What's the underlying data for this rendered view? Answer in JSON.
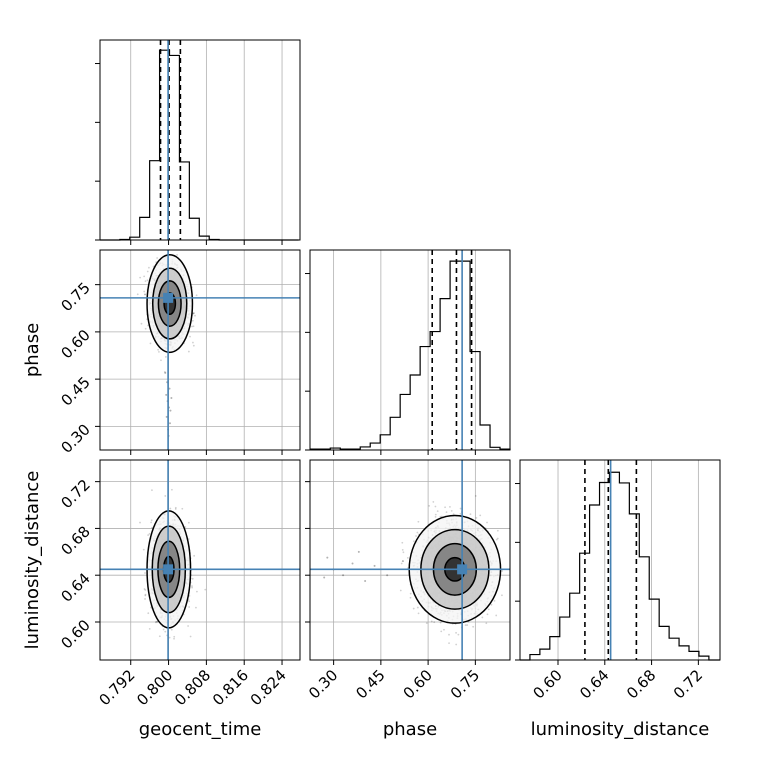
{
  "chart_data": {
    "type": "corner",
    "parameters": [
      "geocent_time",
      "phase",
      "luminosity_distance"
    ],
    "axis_labels": {
      "x": [
        "geocent_time",
        "phase",
        "luminosity_distance"
      ],
      "y": [
        "",
        "phase",
        "luminosity_distance"
      ]
    },
    "ranges": {
      "geocent_time": [
        0.7855,
        0.8278
      ],
      "phase": [
        0.225,
        0.86
      ],
      "luminosity_distance": [
        0.5675,
        0.7385
      ]
    },
    "ticks": {
      "geocent_time": {
        "values": [
          0.792,
          0.8,
          0.808,
          0.816,
          0.824
        ],
        "labels": [
          "0.792",
          "0.800",
          "0.808",
          "0.816",
          "0.824"
        ]
      },
      "phase": {
        "values": [
          0.3,
          0.45,
          0.6,
          0.75
        ],
        "labels": [
          "0.30",
          "0.45",
          "0.60",
          "0.75"
        ]
      },
      "luminosity_distance": {
        "values": [
          0.6,
          0.64,
          0.68,
          0.72
        ],
        "labels": [
          "0.60",
          "0.64",
          "0.68",
          "0.72"
        ]
      }
    },
    "truths": {
      "geocent_time": 0.7999,
      "phase": 0.708,
      "luminosity_distance": 0.645
    },
    "truth_color": "#4682b4",
    "quantiles": {
      "geocent_time": [
        0.7983,
        0.8001,
        0.8025
      ],
      "phase": [
        0.613,
        0.69,
        0.738
      ],
      "luminosity_distance": [
        0.623,
        0.643,
        0.667
      ]
    },
    "histograms": {
      "geocent_time": {
        "edges": [
          0.7855,
          0.7876,
          0.7897,
          0.7918,
          0.7939,
          0.796,
          0.7981,
          0.8002,
          0.8023,
          0.8044,
          0.8065,
          0.8086,
          0.8107,
          0.8128,
          0.8149,
          0.817,
          0.8191,
          0.8212,
          0.8233,
          0.8254,
          0.8275
        ],
        "counts": [
          0,
          0,
          3,
          16,
          129,
          452,
          1082,
          1052,
          445,
          124,
          22,
          3,
          0,
          0,
          0,
          0,
          0,
          0,
          0,
          0
        ]
      },
      "phase": {
        "edges": [
          0.226,
          0.2577,
          0.2894,
          0.3211,
          0.3528,
          0.3845,
          0.4162,
          0.4479,
          0.4796,
          0.5113,
          0.543,
          0.5747,
          0.6064,
          0.6381,
          0.6698,
          0.7015,
          0.7332,
          0.7649,
          0.7966,
          0.8283,
          0.86
        ],
        "counts": [
          5,
          5,
          10,
          5,
          5,
          16,
          36,
          79,
          170,
          289,
          390,
          538,
          616,
          787,
          982,
          982,
          512,
          130,
          14,
          5
        ]
      },
      "luminosity_distance": {
        "edges": [
          0.5675,
          0.576,
          0.5845,
          0.593,
          0.6015,
          0.61,
          0.6185,
          0.627,
          0.6355,
          0.644,
          0.6525,
          0.661,
          0.6695,
          0.678,
          0.6865,
          0.695,
          0.7035,
          0.712,
          0.7205,
          0.729,
          0.7385
        ],
        "counts": [
          0,
          24,
          48,
          103,
          189,
          294,
          470,
          682,
          781,
          826,
          779,
          643,
          454,
          268,
          148,
          96,
          62,
          38,
          17,
          0
        ]
      }
    },
    "hist_ymax": {
      "geocent_time": 1140,
      "phase": 1040,
      "luminosity_distance": 880
    },
    "scatter_panels": [
      {
        "x": "geocent_time",
        "y": "phase",
        "mean": [
          0.80025,
          0.69
        ],
        "sd": [
          0.0018,
          0.055
        ],
        "corr": -0.1,
        "sample_count": 1800,
        "tail_points": [
          [
            0.7998,
            0.38
          ],
          [
            0.8001,
            0.36
          ],
          [
            0.7996,
            0.33
          ],
          [
            0.8003,
            0.31
          ],
          [
            0.7999,
            0.29
          ],
          [
            0.8002,
            0.42
          ],
          [
            0.7995,
            0.4
          ],
          [
            0.8004,
            0.35
          ],
          [
            0.8,
            0.27
          ],
          [
            0.7997,
            0.44
          ],
          [
            0.8006,
            0.39
          ],
          [
            0.7993,
            0.47
          ]
        ],
        "levels": [
          {
            "rx": 0.0048,
            "ry": 0.155,
            "fill": "#f4f4f4"
          },
          {
            "rx": 0.0036,
            "ry": 0.112,
            "fill": "#c9c9c9"
          },
          {
            "rx": 0.0024,
            "ry": 0.072,
            "fill": "#7e7e7e"
          },
          {
            "rx": 0.0012,
            "ry": 0.034,
            "fill": "#2a2a2a"
          }
        ]
      },
      {
        "x": "geocent_time",
        "y": "luminosity_distance",
        "mean": [
          0.80005,
          0.645
        ],
        "sd": [
          0.0018,
          0.019
        ],
        "corr": 0.0,
        "sample_count": 1800,
        "tail_points": [],
        "levels": [
          {
            "rx": 0.0046,
            "ry": 0.05,
            "fill": "#f4f4f4"
          },
          {
            "rx": 0.0035,
            "ry": 0.037,
            "fill": "#c9c9c9"
          },
          {
            "rx": 0.0023,
            "ry": 0.024,
            "fill": "#7e7e7e"
          },
          {
            "rx": 0.0011,
            "ry": 0.011,
            "fill": "#2a2a2a"
          }
        ]
      },
      {
        "x": "phase",
        "y": "luminosity_distance",
        "mean": [
          0.685,
          0.645
        ],
        "sd": [
          0.055,
          0.019
        ],
        "corr": 0.0,
        "sample_count": 2000,
        "tail_points": [
          [
            0.3,
            0.645
          ],
          [
            0.33,
            0.64
          ],
          [
            0.36,
            0.65
          ],
          [
            0.28,
            0.655
          ],
          [
            0.4,
            0.635
          ],
          [
            0.43,
            0.648
          ],
          [
            0.47,
            0.64
          ],
          [
            0.38,
            0.66
          ],
          [
            0.52,
            0.652
          ],
          [
            0.27,
            0.638
          ]
        ],
        "levels": [
          {
            "rx": 0.145,
            "ry": 0.046,
            "fill": "#f4f4f4"
          },
          {
            "rx": 0.108,
            "ry": 0.034,
            "fill": "#c9c9c9"
          },
          {
            "rx": 0.068,
            "ry": 0.022,
            "fill": "#7e7e7e"
          },
          {
            "rx": 0.032,
            "ry": 0.01,
            "fill": "#2a2a2a"
          }
        ]
      }
    ]
  }
}
